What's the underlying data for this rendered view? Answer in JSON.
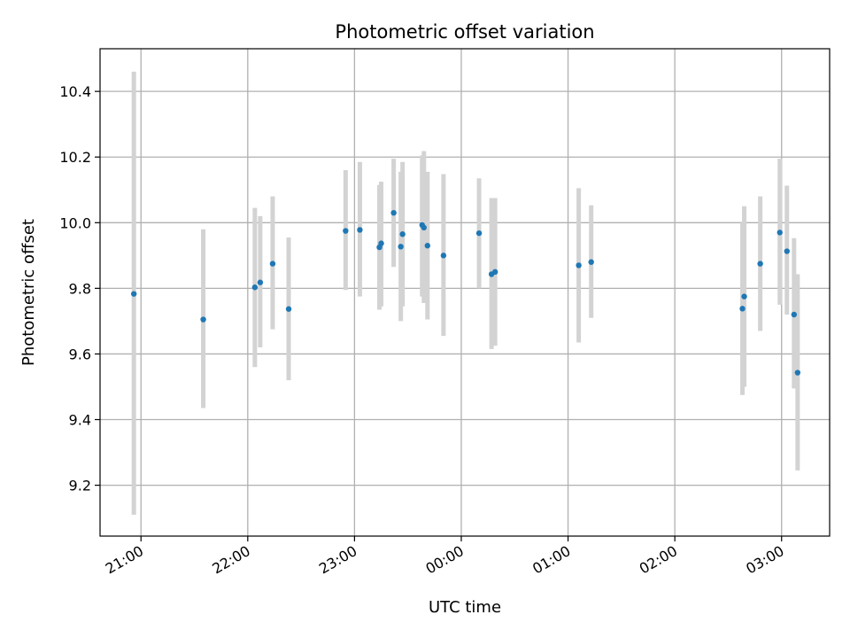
{
  "chart_data": {
    "type": "scatter",
    "title": "Photometric offset variation",
    "xlabel": "UTC time",
    "ylabel": "Photometric offset",
    "x_tick_labels": [
      "21:00",
      "22:00",
      "23:00",
      "00:00",
      "01:00",
      "02:00",
      "03:00"
    ],
    "y_tick_labels": [
      "9.2",
      "9.4",
      "9.6",
      "9.8",
      "10.0",
      "10.2",
      "10.4"
    ],
    "ylim": [
      9.045,
      10.53
    ],
    "xlim": [
      "20:37",
      "03:27"
    ],
    "grid": true,
    "legend": "none",
    "colors": {
      "point": "#1f77b4",
      "errorbar": "#d3d3d3",
      "grid": "#b0b0b0",
      "axes": "#000000"
    },
    "series": [
      {
        "points": [
          {
            "x": "20:56",
            "y": 9.783,
            "ymin": 9.11,
            "ymax": 10.46
          },
          {
            "x": "21:35",
            "y": 9.705,
            "ymin": 9.435,
            "ymax": 9.98
          },
          {
            "x": "22:04",
            "y": 9.803,
            "ymin": 9.56,
            "ymax": 10.045
          },
          {
            "x": "22:07",
            "y": 9.818,
            "ymin": 9.62,
            "ymax": 10.02
          },
          {
            "x": "22:14",
            "y": 9.875,
            "ymin": 9.675,
            "ymax": 10.08
          },
          {
            "x": "22:23",
            "y": 9.737,
            "ymin": 9.52,
            "ymax": 9.955
          },
          {
            "x": "22:55",
            "y": 9.975,
            "ymin": 9.795,
            "ymax": 10.16
          },
          {
            "x": "23:03",
            "y": 9.978,
            "ymin": 9.775,
            "ymax": 10.185
          },
          {
            "x": "23:14",
            "y": 9.925,
            "ymin": 9.735,
            "ymax": 10.115
          },
          {
            "x": "23:15",
            "y": 9.937,
            "ymin": 9.745,
            "ymax": 10.125
          },
          {
            "x": "23:22",
            "y": 10.03,
            "ymin": 9.865,
            "ymax": 10.195
          },
          {
            "x": "23:26",
            "y": 9.927,
            "ymin": 9.7,
            "ymax": 10.155
          },
          {
            "x": "23:27",
            "y": 9.965,
            "ymin": 9.745,
            "ymax": 10.185
          },
          {
            "x": "23:38",
            "y": 9.993,
            "ymin": 9.775,
            "ymax": 10.205
          },
          {
            "x": "23:39",
            "y": 9.985,
            "ymin": 9.755,
            "ymax": 10.218
          },
          {
            "x": "23:41",
            "y": 9.93,
            "ymin": 9.705,
            "ymax": 10.155
          },
          {
            "x": "23:50",
            "y": 9.9,
            "ymin": 9.655,
            "ymax": 10.148
          },
          {
            "x": "00:10",
            "y": 9.968,
            "ymin": 9.8,
            "ymax": 10.135
          },
          {
            "x": "00:17",
            "y": 9.843,
            "ymin": 9.615,
            "ymax": 10.075
          },
          {
            "x": "00:19",
            "y": 9.85,
            "ymin": 9.625,
            "ymax": 10.075
          },
          {
            "x": "01:06",
            "y": 9.87,
            "ymin": 9.635,
            "ymax": 10.105
          },
          {
            "x": "01:13",
            "y": 9.88,
            "ymin": 9.71,
            "ymax": 10.053
          },
          {
            "x": "02:38",
            "y": 9.738,
            "ymin": 9.475,
            "ymax": 10.0
          },
          {
            "x": "02:39",
            "y": 9.775,
            "ymin": 9.5,
            "ymax": 10.05
          },
          {
            "x": "02:48",
            "y": 9.875,
            "ymin": 9.67,
            "ymax": 10.08
          },
          {
            "x": "02:59",
            "y": 9.97,
            "ymin": 9.75,
            "ymax": 10.195
          },
          {
            "x": "03:03",
            "y": 9.913,
            "ymin": 9.72,
            "ymax": 10.113
          },
          {
            "x": "03:07",
            "y": 9.72,
            "ymin": 9.495,
            "ymax": 9.953
          },
          {
            "x": "03:09",
            "y": 9.543,
            "ymin": 9.245,
            "ymax": 9.843
          }
        ]
      }
    ]
  }
}
